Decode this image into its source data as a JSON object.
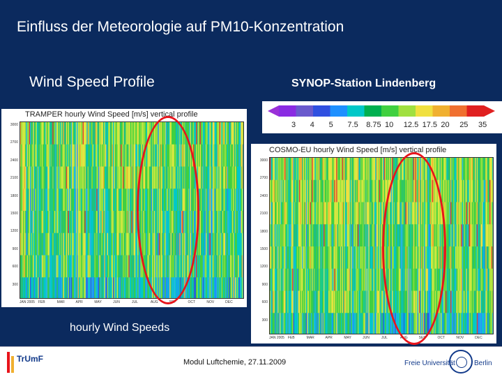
{
  "slide": {
    "title": "Einfluss der Meteorologie auf  PM10-Konzentration",
    "subtitle": "Wind Speed Profile",
    "station": "SYNOP-Station Lindenberg",
    "caption": "hourly Wind Speeds"
  },
  "left_panel": {
    "title": "TRAMPER  hourly  Wind  Speed  [m/s]  vertical  profile",
    "y_ticks": [
      "3000",
      "2700",
      "2400",
      "2100",
      "1800",
      "1500",
      "1200",
      "900",
      "600",
      "300"
    ],
    "x_ticks": [
      "JAN 2005",
      "FEB",
      "MAR",
      "APR",
      "MAY",
      "JUN",
      "JUL",
      "AUG",
      "SEP",
      "OCT",
      "NOV",
      "DEC"
    ]
  },
  "right_panel": {
    "title": "COSMO-EU  hourly  Wind  Speed  [m/s]  vertical  profile",
    "y_ticks": [
      "3000",
      "2700",
      "2400",
      "2100",
      "1800",
      "1500",
      "1200",
      "900",
      "600",
      "300"
    ],
    "x_ticks": [
      "JAN 2005",
      "FEB",
      "MAR",
      "APR",
      "MAY",
      "JUN",
      "JUL",
      "AUG",
      "SEP",
      "OCT",
      "NOV",
      "DEC"
    ]
  },
  "legend": {
    "ticks": [
      "3",
      "4",
      "5",
      "7.5",
      "8.75",
      "10",
      "12.5",
      "17.5",
      "20",
      "25",
      "35"
    ],
    "colors": [
      "#8a2be2",
      "#6a5acd",
      "#3050e0",
      "#1e90ff",
      "#00c8c8",
      "#00b050",
      "#40d040",
      "#a0e040",
      "#f0e040",
      "#f0b030",
      "#f07030",
      "#e02020"
    ]
  },
  "footer": {
    "text": "Modul Luftchemie, 27.11.2009",
    "left_logo": "TrUmF",
    "right_logo_left": "Freie Universität",
    "right_logo_right": "Berlin"
  },
  "colors": {
    "background": "#0b2a5e",
    "highlight": "#e8141b"
  }
}
